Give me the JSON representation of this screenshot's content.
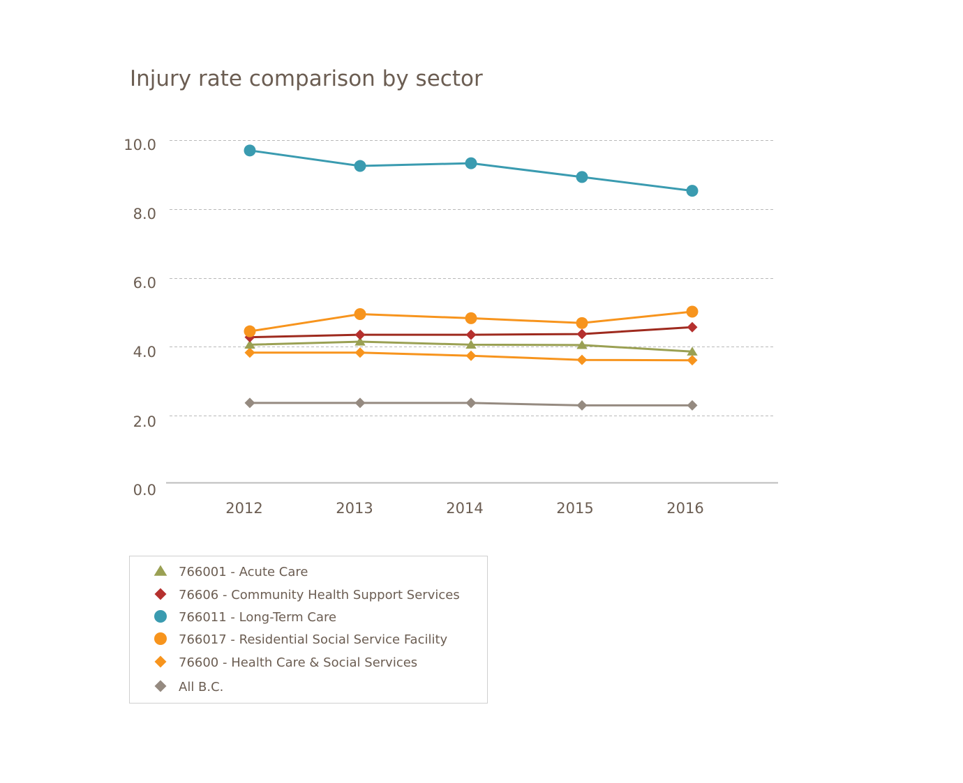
{
  "chart_data": {
    "type": "line",
    "title": "Injury rate comparison by sector",
    "xlabel": "",
    "ylabel": "",
    "categories": [
      "2012",
      "2013",
      "2014",
      "2015",
      "2016"
    ],
    "ylim": [
      0,
      10
    ],
    "yticks": [
      "0.0",
      "2.0",
      "4.0",
      "6.0",
      "8.0",
      "10.0"
    ],
    "grid": true,
    "legend_position": "bottom-left",
    "series": [
      {
        "name": "766011 - Long-Term Care",
        "legend_label": "766011 - Long-Term Care",
        "marker": "circle",
        "color": "#3a9bb0",
        "values": [
          9.7,
          9.25,
          9.33,
          8.93,
          8.53
        ]
      },
      {
        "name": "766017 - Residential Social Service Facility",
        "legend_label": "766017 - Residential Social Service Facility",
        "marker": "circle",
        "color": "#f7941d",
        "values": [
          4.45,
          4.95,
          4.83,
          4.69,
          5.02
        ]
      },
      {
        "name": "76606 - Community Health Support Services",
        "legend_label": "76606 - Community Health Support Services",
        "marker": "diamond",
        "color": "#b5302e",
        "line_color": "#9e2a1e",
        "values": [
          4.28,
          4.35,
          4.35,
          4.37,
          4.57
        ]
      },
      {
        "name": "766001 - Acute Care",
        "legend_label": "766001 - Acute Care",
        "marker": "triangle",
        "color": "#9aa053",
        "values": [
          4.06,
          4.15,
          4.06,
          4.05,
          3.86
        ]
      },
      {
        "name": "76600 - Health Care & Social Services",
        "legend_label": "76600 - Health Care & Social Services",
        "marker": "diamond",
        "color": "#f7941d",
        "values": [
          3.83,
          3.83,
          3.74,
          3.62,
          3.61
        ]
      },
      {
        "name": "All B.C.",
        "legend_label": " All B.C.",
        "marker": "diamond",
        "color": "#958a80",
        "values": [
          2.37,
          2.37,
          2.37,
          2.3,
          2.3
        ]
      }
    ],
    "legend_order": [
      3,
      2,
      0,
      1,
      4,
      5
    ]
  }
}
